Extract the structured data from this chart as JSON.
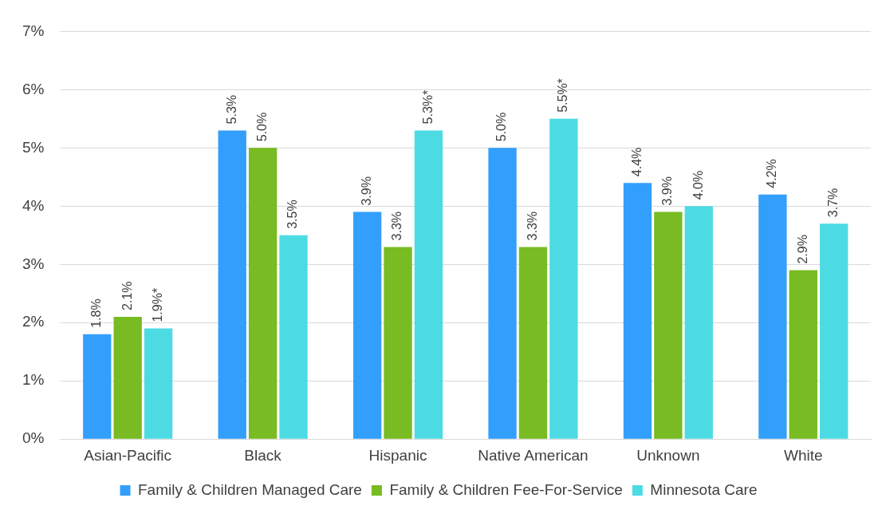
{
  "chart_data": {
    "type": "bar",
    "categories": [
      "Asian-Pacific",
      "Black",
      "Hispanic",
      "Native American",
      "Unknown",
      "White"
    ],
    "series": [
      {
        "name": "Family & Children Managed Care",
        "color": "#339ffc",
        "values": [
          1.8,
          5.3,
          3.9,
          5.0,
          4.4,
          4.2
        ],
        "value_labels": [
          "1.8%",
          "5.3%",
          "3.9%",
          "5.0%",
          "4.4%",
          "4.2%"
        ]
      },
      {
        "name": "Family & Children Fee-For-Service",
        "color": "#78bb22",
        "values": [
          2.1,
          5.0,
          3.3,
          3.3,
          3.9,
          2.9
        ],
        "value_labels": [
          "2.1%",
          "5.0%",
          "3.3%",
          "3.3%",
          "3.9%",
          "2.9%"
        ]
      },
      {
        "name": "Minnesota Care",
        "color": "#4ddbe3",
        "values": [
          1.9,
          3.5,
          5.3,
          5.5,
          4.0,
          3.7
        ],
        "value_labels": [
          "1.9%*",
          "3.5%",
          "5.3%*",
          "5.5%*",
          "4.0%",
          "3.7%"
        ]
      }
    ],
    "ylim": [
      0,
      7
    ],
    "yticks": [
      {
        "value": 0,
        "label": "0%"
      },
      {
        "value": 1,
        "label": "1%"
      },
      {
        "value": 2,
        "label": "2%"
      },
      {
        "value": 3,
        "label": "3%"
      },
      {
        "value": 4,
        "label": "4%"
      },
      {
        "value": 5,
        "label": "5%"
      },
      {
        "value": 6,
        "label": "6%"
      },
      {
        "value": 7,
        "label": "7%"
      }
    ],
    "grid": "y",
    "legend": "bottom"
  }
}
